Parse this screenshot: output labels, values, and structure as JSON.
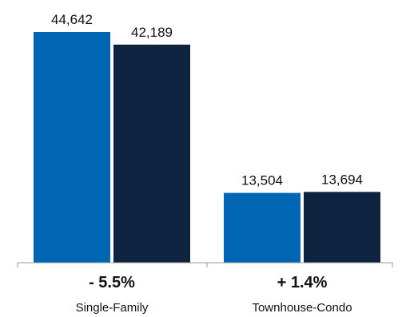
{
  "chart_data": {
    "type": "bar",
    "categories": [
      "Single-Family",
      "Townhouse-Condo"
    ],
    "series": [
      {
        "values": [
          44642,
          13504
        ],
        "color": "#0066B3"
      },
      {
        "values": [
          42189,
          13694
        ],
        "color": "#0E2340"
      }
    ],
    "data_labels": [
      [
        "44,642",
        "13,504"
      ],
      [
        "42,189",
        "13,694"
      ]
    ],
    "change_labels": [
      "- 5.5%",
      "+ 1.4%"
    ],
    "ylim": [
      0,
      44642
    ],
    "grid": false,
    "legend": "none"
  }
}
